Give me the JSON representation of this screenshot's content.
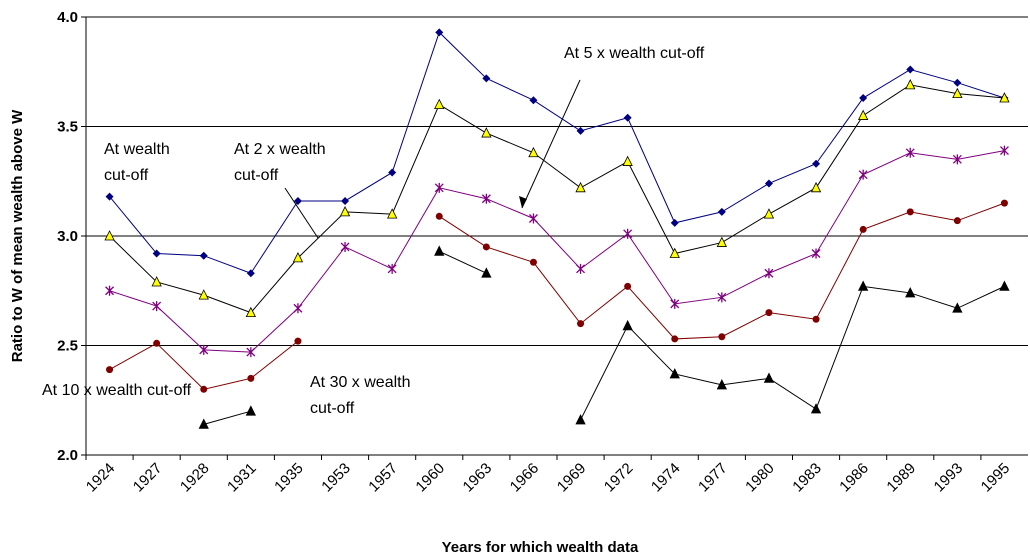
{
  "chart_data": {
    "type": "line",
    "x_label": "Years for which wealth data",
    "y_label": "Ratio to W of mean wealth above W",
    "categories": [
      "1924",
      "1927",
      "1928",
      "1931",
      "1935",
      "1953",
      "1957",
      "1960",
      "1963",
      "1966",
      "1969",
      "1972",
      "1974",
      "1977",
      "1980",
      "1983",
      "1986",
      "1989",
      "1993",
      "1995"
    ],
    "ylim": [
      2.0,
      4.0
    ],
    "yticks": [
      {
        "value": 2.0,
        "label": "2.0"
      },
      {
        "value": 2.5,
        "label": "2.5"
      },
      {
        "value": 3.0,
        "label": "3.0"
      },
      {
        "value": 3.5,
        "label": "3.5"
      },
      {
        "value": 4.0,
        "label": "4.0"
      }
    ],
    "grid": true,
    "series": [
      {
        "color": "#000080",
        "marker": "diamond",
        "values": [
          3.18,
          2.92,
          2.91,
          2.83,
          3.16,
          3.16,
          3.29,
          3.93,
          3.72,
          3.62,
          3.48,
          3.54,
          3.06,
          3.11,
          3.24,
          3.33,
          3.63,
          3.76,
          3.7,
          3.63
        ]
      },
      {
        "color": "#000000",
        "marker": "triangle",
        "marker_fill": "#ffff00",
        "values": [
          3.0,
          2.79,
          2.73,
          2.65,
          2.9,
          3.11,
          3.1,
          3.6,
          3.47,
          3.38,
          3.22,
          3.34,
          2.92,
          2.97,
          3.1,
          3.22,
          3.55,
          3.69,
          3.65,
          3.63
        ]
      },
      {
        "color": "#800080",
        "marker": "star",
        "values": [
          2.75,
          2.68,
          2.48,
          2.47,
          2.67,
          2.95,
          2.85,
          3.22,
          3.17,
          3.08,
          2.85,
          3.01,
          2.69,
          2.72,
          2.83,
          2.92,
          3.28,
          3.38,
          3.35,
          3.39
        ]
      },
      {
        "color": "#800000",
        "marker": "circle",
        "values": [
          2.39,
          2.51,
          2.3,
          2.35,
          2.52,
          null,
          null,
          3.09,
          2.95,
          2.88,
          2.6,
          2.77,
          2.53,
          2.54,
          2.65,
          2.62,
          3.03,
          3.11,
          3.07,
          3.15
        ]
      },
      {
        "color": "#000000",
        "marker": "triangle",
        "marker_fill": "#000000",
        "values": [
          null,
          null,
          2.14,
          2.2,
          null,
          null,
          null,
          2.93,
          2.83,
          null,
          2.16,
          2.59,
          2.37,
          2.32,
          2.35,
          2.21,
          2.77,
          2.74,
          2.67,
          2.77
        ]
      }
    ],
    "annotations": [
      {
        "lines": [
          "At wealth",
          "cut-off"
        ]
      },
      {
        "lines": [
          "At 2 x wealth",
          "cut-off"
        ]
      },
      {
        "lines": [
          "At 5 x wealth cut-off"
        ]
      },
      {
        "lines": [
          "At 10 x wealth cut-off"
        ]
      },
      {
        "lines": [
          "At 30 x wealth",
          "cut-off"
        ]
      }
    ]
  }
}
